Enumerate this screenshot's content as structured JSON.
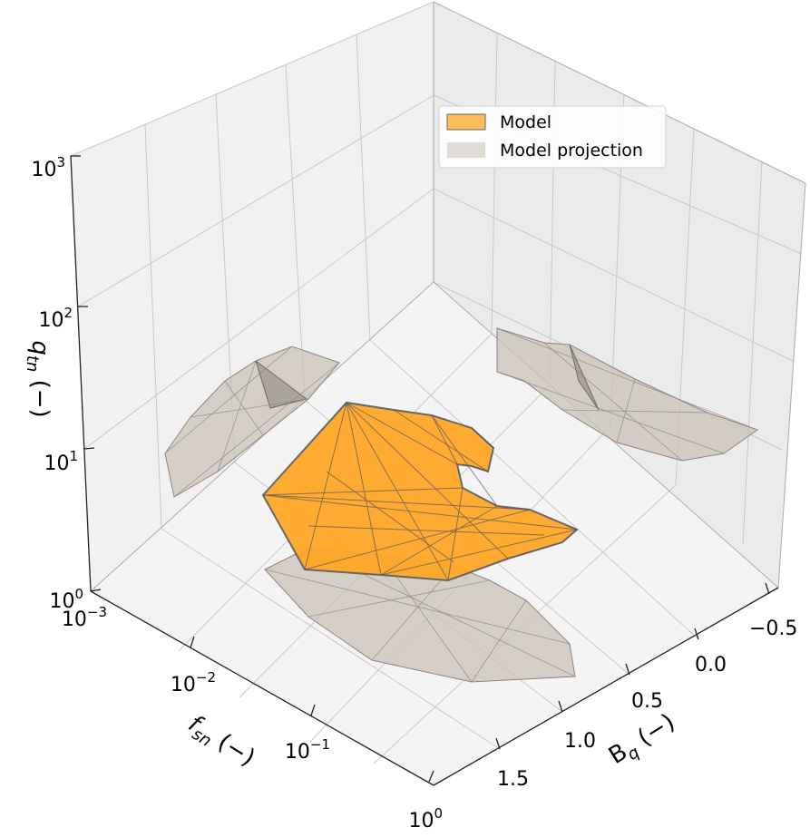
{
  "chart_data": {
    "type": "3d-surface",
    "axes": {
      "x": {
        "label": "B_q (−)",
        "label_main": "B",
        "label_sub": "q",
        "label_tail": " (−)",
        "ticks": [
          "−0.5",
          "0.0",
          "0.5",
          "1.0",
          "1.5"
        ],
        "range": [
          -0.75,
          1.75
        ],
        "scale": "linear"
      },
      "y": {
        "label": "f_sn (−)",
        "label_main": "f",
        "label_sub": "sn",
        "label_tail": " (−)",
        "ticks": [
          {
            "base": "10",
            "exp": "−3"
          },
          {
            "base": "10",
            "exp": "−2"
          },
          {
            "base": "10",
            "exp": "−1"
          },
          {
            "base": "10",
            "exp": "0"
          }
        ],
        "range": [
          0.001,
          1
        ],
        "scale": "log"
      },
      "z": {
        "label": "q_tn (−)",
        "label_main": "q",
        "label_sub": "tn",
        "label_tail": " (−)",
        "ticks": [
          {
            "base": "10",
            "exp": "0"
          },
          {
            "base": "10",
            "exp": "1"
          },
          {
            "base": "10",
            "exp": "2"
          },
          {
            "base": "10",
            "exp": "3"
          }
        ],
        "range": [
          1,
          1000
        ],
        "scale": "log"
      }
    },
    "series": [
      {
        "name": "Model",
        "color": "#ffa726"
      },
      {
        "name": "Model projection",
        "color": "#ccc6bd"
      }
    ],
    "legend_position": "upper-right",
    "grid": true
  }
}
